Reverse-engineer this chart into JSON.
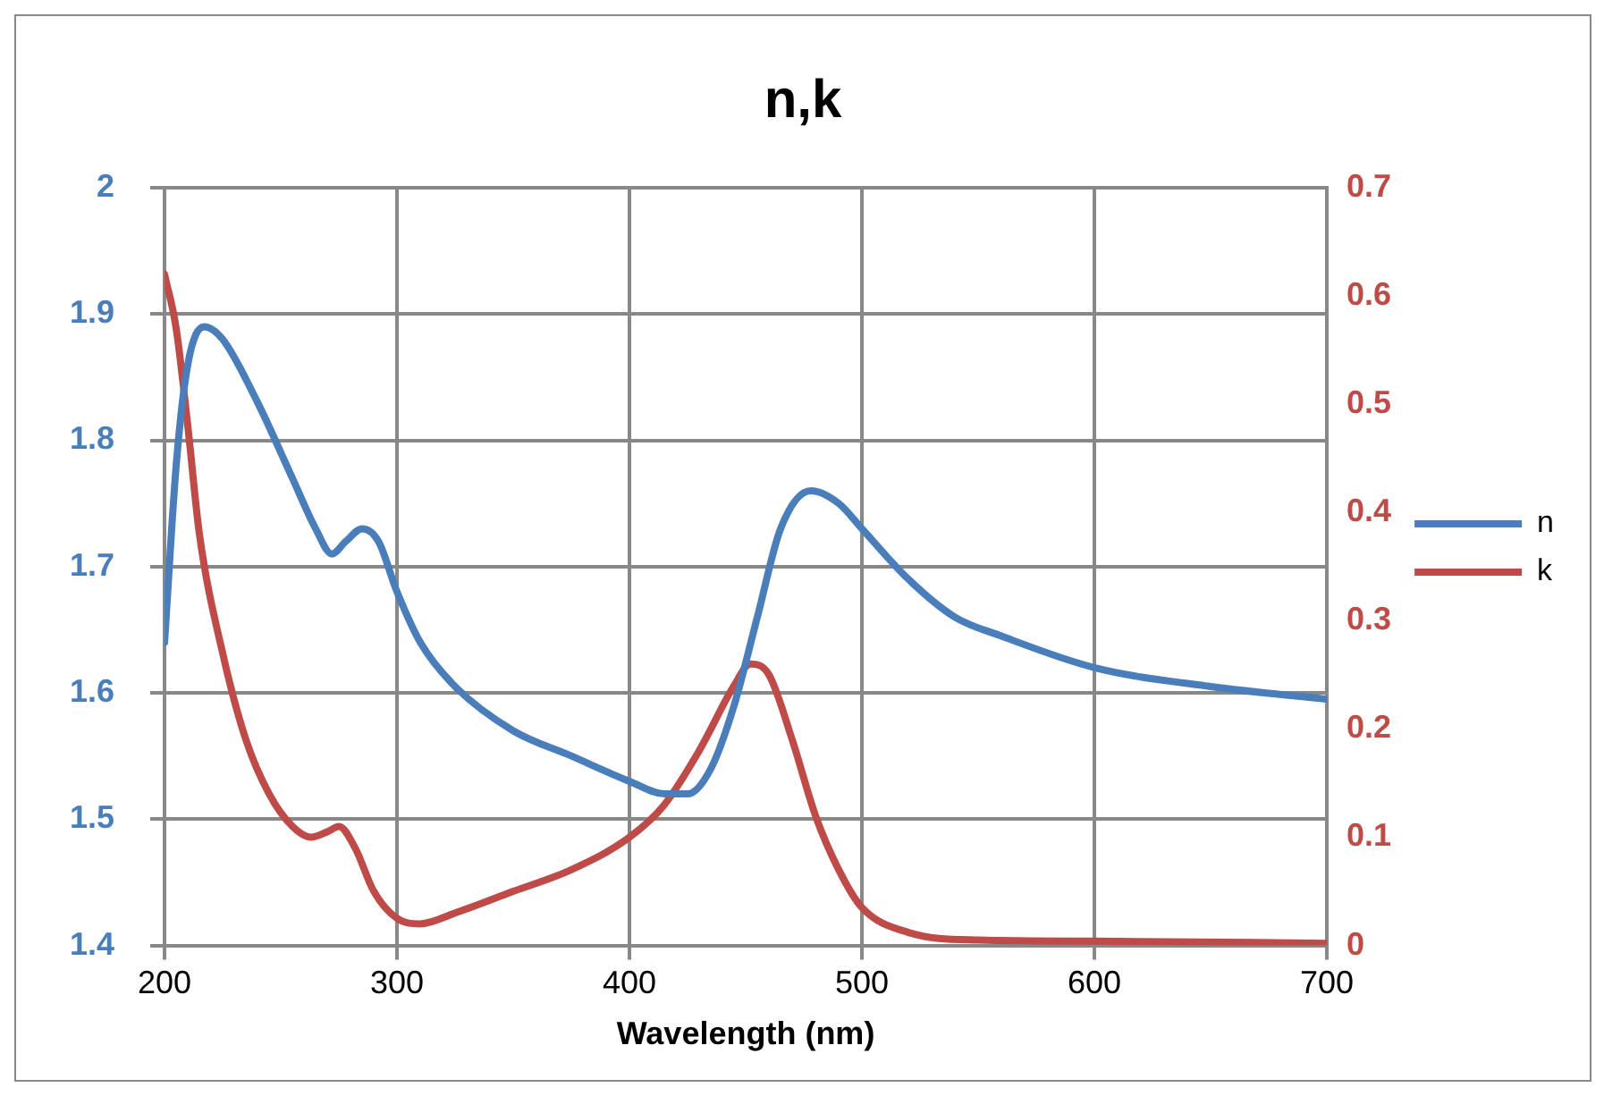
{
  "chart_data": {
    "type": "line",
    "title": "n,k",
    "xlabel": "Wavelength (nm)",
    "xlim": [
      200,
      700
    ],
    "xticks": [
      200,
      300,
      400,
      500,
      600,
      700
    ],
    "ylim": [
      1.4,
      2
    ],
    "yticks": [
      1.4,
      1.5,
      1.6,
      1.7,
      1.8,
      1.9,
      2
    ],
    "y2lim": [
      0,
      0.7
    ],
    "y2ticks": [
      0,
      0.1,
      0.2,
      0.3,
      0.4,
      0.5,
      0.6,
      0.7
    ],
    "grid": true,
    "legend": "right",
    "marker": "none",
    "line_style": "solid",
    "series": [
      {
        "name": "n",
        "color": "#4a7ebb",
        "x": [
          200,
          205,
          210,
          217,
          225,
          240,
          255,
          265,
          272,
          278,
          285,
          292,
          300,
          310,
          325,
          350,
          375,
          400,
          415,
          425,
          435,
          445,
          455,
          465,
          478,
          490,
          500,
          520,
          540,
          560,
          600,
          650,
          700
        ],
        "values": [
          1.64,
          1.78,
          1.86,
          1.89,
          1.88,
          1.83,
          1.77,
          1.73,
          1.71,
          1.72,
          1.73,
          1.72,
          1.68,
          1.64,
          1.605,
          1.57,
          1.55,
          1.53,
          1.52,
          1.52,
          1.54,
          1.59,
          1.66,
          1.73,
          1.76,
          1.75,
          1.73,
          1.69,
          1.66,
          1.645,
          1.62,
          1.605,
          1.595
        ]
      },
      {
        "name": "k",
        "color": "#be4b48",
        "axis": "y2",
        "x": [
          200,
          205,
          210,
          215,
          225,
          235,
          245,
          255,
          263,
          270,
          275,
          282,
          290,
          300,
          310,
          325,
          350,
          375,
          400,
          415,
          430,
          445,
          452,
          460,
          470,
          480,
          490,
          500,
          520,
          550,
          600,
          700
        ],
        "values": [
          0.62,
          0.57,
          0.48,
          0.38,
          0.27,
          0.19,
          0.14,
          0.11,
          0.1,
          0.105,
          0.11,
          0.09,
          0.05,
          0.025,
          0.02,
          0.03,
          0.05,
          0.07,
          0.1,
          0.13,
          0.18,
          0.24,
          0.26,
          0.25,
          0.19,
          0.12,
          0.07,
          0.035,
          0.012,
          0.005,
          0.004,
          0.002
        ]
      }
    ]
  }
}
